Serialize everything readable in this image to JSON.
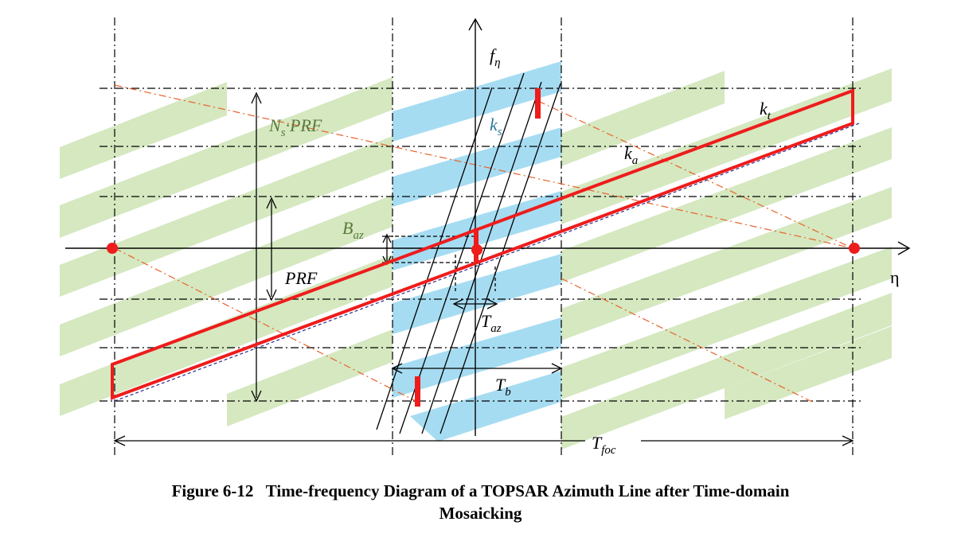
{
  "figure": {
    "caption_line1": "Figure 6-12   Time-frequency Diagram of a TOPSAR Azimuth Line after Time-domain",
    "caption_line2": "Mosaicking"
  },
  "labels": {
    "freq_axis_main": "f",
    "freq_axis_sub": "η",
    "time_axis": "η",
    "ns_prf_main": "N",
    "ns_prf_sub": "s",
    "ns_prf_rest": "·PRF",
    "prf": "PRF",
    "b_az_main": "B",
    "b_az_sub": "az",
    "k_s_main": "k",
    "k_s_sub": "s",
    "k_a_main": "k",
    "k_a_sub": "a",
    "k_t_main": "k",
    "k_t_sub": "t",
    "t_az_main": "T",
    "t_az_sub": "az",
    "t_b_main": "T",
    "t_b_sub": "b",
    "t_foc_main": "T",
    "t_foc_sub": "foc"
  },
  "colors": {
    "green_band": "#d5e8c0",
    "blue_band": "#a6dcf2",
    "red": "#ee1c1c",
    "orange_dash": "#e8622a",
    "dark_blue_dash": "#2a2a8c",
    "black": "#000000"
  }
}
